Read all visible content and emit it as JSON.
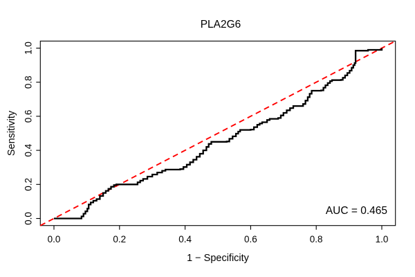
{
  "chart_data": {
    "type": "line",
    "subtype": "roc-step-curve",
    "title": "PLA2G6",
    "xlabel": "1 − Specificity",
    "ylabel": "Sensitivity",
    "xlim": [
      0,
      1
    ],
    "ylim": [
      0,
      1
    ],
    "grid": false,
    "legend": "none",
    "annotation": "AUC = 0.465",
    "auc_value": 0.465,
    "background_color": "#ffffff",
    "box_color": "#000000",
    "x_ticks": {
      "values": [
        0.0,
        0.2,
        0.4,
        0.6,
        0.8,
        1.0
      ],
      "labels": [
        "0.0",
        "0.2",
        "0.4",
        "0.6",
        "0.8",
        "1.0"
      ]
    },
    "y_ticks": {
      "values": [
        0.0,
        0.2,
        0.4,
        0.6,
        0.8,
        1.0
      ],
      "labels": [
        "0.0",
        "0.2",
        "0.4",
        "0.6",
        "0.8",
        "1.0"
      ]
    },
    "series": [
      {
        "name": "ROC curve",
        "style": "step",
        "color": "#000000",
        "line_width": 2.3,
        "points": [
          [
            0,
            0
          ],
          [
            0.08,
            0
          ],
          [
            0.084,
            0.012
          ],
          [
            0.09,
            0.028
          ],
          [
            0.096,
            0.042
          ],
          [
            0.102,
            0.058
          ],
          [
            0.106,
            0.082
          ],
          [
            0.112,
            0.094
          ],
          [
            0.12,
            0.104
          ],
          [
            0.13,
            0.114
          ],
          [
            0.14,
            0.132
          ],
          [
            0.15,
            0.15
          ],
          [
            0.158,
            0.162
          ],
          [
            0.166,
            0.174
          ],
          [
            0.174,
            0.186
          ],
          [
            0.183,
            0.196
          ],
          [
            0.19,
            0.2
          ],
          [
            0.247,
            0.2
          ],
          [
            0.255,
            0.212
          ],
          [
            0.263,
            0.222
          ],
          [
            0.272,
            0.232
          ],
          [
            0.285,
            0.246
          ],
          [
            0.3,
            0.258
          ],
          [
            0.315,
            0.27
          ],
          [
            0.33,
            0.28
          ],
          [
            0.34,
            0.287
          ],
          [
            0.385,
            0.29
          ],
          [
            0.395,
            0.302
          ],
          [
            0.405,
            0.316
          ],
          [
            0.415,
            0.33
          ],
          [
            0.425,
            0.345
          ],
          [
            0.435,
            0.362
          ],
          [
            0.445,
            0.38
          ],
          [
            0.455,
            0.4
          ],
          [
            0.465,
            0.42
          ],
          [
            0.472,
            0.438
          ],
          [
            0.48,
            0.45
          ],
          [
            0.527,
            0.452
          ],
          [
            0.535,
            0.468
          ],
          [
            0.545,
            0.482
          ],
          [
            0.555,
            0.498
          ],
          [
            0.562,
            0.51
          ],
          [
            0.568,
            0.52
          ],
          [
            0.6,
            0.522
          ],
          [
            0.61,
            0.536
          ],
          [
            0.62,
            0.55
          ],
          [
            0.635,
            0.565
          ],
          [
            0.65,
            0.578
          ],
          [
            0.658,
            0.585
          ],
          [
            0.684,
            0.59
          ],
          [
            0.692,
            0.605
          ],
          [
            0.7,
            0.62
          ],
          [
            0.71,
            0.635
          ],
          [
            0.72,
            0.648
          ],
          [
            0.73,
            0.66
          ],
          [
            0.76,
            0.672
          ],
          [
            0.767,
            0.692
          ],
          [
            0.774,
            0.712
          ],
          [
            0.78,
            0.732
          ],
          [
            0.786,
            0.75
          ],
          [
            0.815,
            0.752
          ],
          [
            0.822,
            0.768
          ],
          [
            0.828,
            0.782
          ],
          [
            0.835,
            0.795
          ],
          [
            0.842,
            0.806
          ],
          [
            0.848,
            0.812
          ],
          [
            0.875,
            0.814
          ],
          [
            0.881,
            0.826
          ],
          [
            0.888,
            0.84
          ],
          [
            0.895,
            0.854
          ],
          [
            0.902,
            0.868
          ],
          [
            0.908,
            0.885
          ],
          [
            0.913,
            0.9
          ],
          [
            0.917,
            0.912
          ],
          [
            0.92,
            0.985
          ],
          [
            0.955,
            0.985
          ],
          [
            0.958,
            0.99
          ],
          [
            0.995,
            0.99
          ],
          [
            1,
            1
          ]
        ]
      },
      {
        "name": "chance diagonal",
        "style": "dashed",
        "color": "#ff0000",
        "line_width": 1.9,
        "dash": "8,5.5",
        "points": [
          [
            0,
            0
          ],
          [
            1,
            1
          ]
        ]
      }
    ]
  }
}
